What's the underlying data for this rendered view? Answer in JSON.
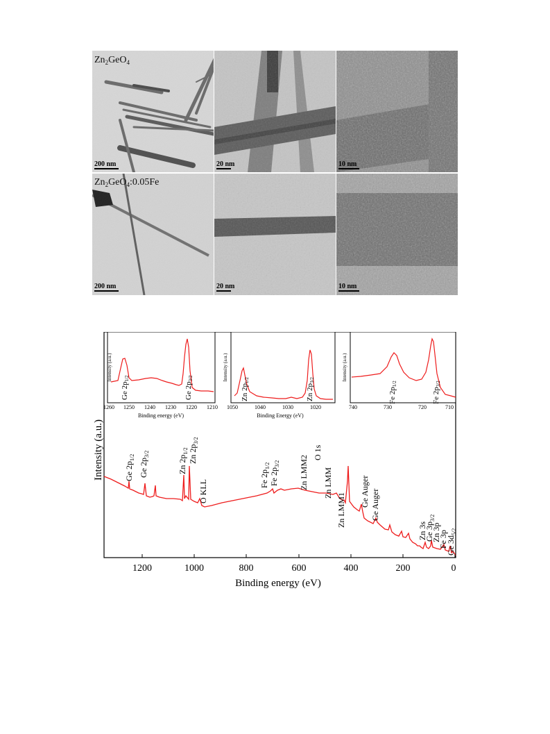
{
  "tem_figure": {
    "rows": [
      {
        "sample_label": {
          "base": "Zn",
          "sub1": "2",
          "mid": "GeO",
          "sub2": "4",
          "tail": ""
        },
        "scale_bars": [
          "200 nm",
          "20 nm",
          "10 nm"
        ]
      },
      {
        "sample_label": {
          "base": "Zn",
          "sub1": "2",
          "mid": "GeO",
          "sub2": "4",
          "tail": ":0.05Fe"
        },
        "scale_bars": [
          "200 nm",
          "20 nm",
          "10 nm"
        ]
      }
    ]
  },
  "xps_figure": {
    "main_axis": {
      "xlabel": "Binding energy (eV)",
      "ylabel": "Intensity (a.u.)",
      "xticks": [
        "1200",
        "1000",
        "800",
        "600",
        "400",
        "200",
        "0"
      ],
      "line_color": "#ee1c1c"
    },
    "main_annotations": [
      {
        "text": "Ge 2p",
        "sub": "1/2"
      },
      {
        "text": "Ge 2p",
        "sub": "3/2"
      },
      {
        "text": "Zn 2p",
        "sub": "1/2"
      },
      {
        "text": "Zn 2p",
        "sub": "3/2"
      },
      {
        "text": "O KLL",
        "sub": ""
      },
      {
        "text": "Fe 2p",
        "sub": "1/2"
      },
      {
        "text": "Fe 2p",
        "sub": "3/2"
      },
      {
        "text": "Zn LMM2",
        "sub": ""
      },
      {
        "text": "O 1s",
        "sub": ""
      },
      {
        "text": "Zn LMM",
        "sub": ""
      },
      {
        "text": "Zn LMM1",
        "sub": ""
      },
      {
        "text": "Ge Auger",
        "sub": ""
      },
      {
        "text": "Ge Auger",
        "sub": ""
      },
      {
        "text": "Zn 3s",
        "sub": ""
      },
      {
        "text": "Ge 3p",
        "sub": "3/2"
      },
      {
        "text": "Zn 3p",
        "sub": ""
      },
      {
        "text": "Fe 3p",
        "sub": ""
      },
      {
        "text": "Ge 3d",
        "sub": "5/2"
      }
    ],
    "insets": [
      {
        "ylabel": "Intensity (a.u.)",
        "xlabel": "Binding energy (eV)",
        "xticks": [
          "1260",
          "1250",
          "1240",
          "1230",
          "1220",
          "1210"
        ],
        "labels": [
          {
            "text": "Ge 2p",
            "sub": "1/2"
          },
          {
            "text": "Ge 2p",
            "sub": "3/2"
          }
        ]
      },
      {
        "ylabel": "Intensity (a.u.)",
        "xlabel": "Binding Energy (eV)",
        "xticks": [
          "1050",
          "1040",
          "1030",
          "1020"
        ],
        "labels": [
          {
            "text": "Zn 2p",
            "sub": "1/2"
          },
          {
            "text": "Zn 2p",
            "sub": "3/2"
          }
        ]
      },
      {
        "ylabel": "Intensity (a.u.)",
        "xlabel": "",
        "xticks": [
          "740",
          "730",
          "720",
          "710"
        ],
        "labels": [
          {
            "text": "Fe 2p",
            "sub": "1/2"
          },
          {
            "text": "Fe 2p",
            "sub": "3/2"
          }
        ]
      }
    ]
  }
}
